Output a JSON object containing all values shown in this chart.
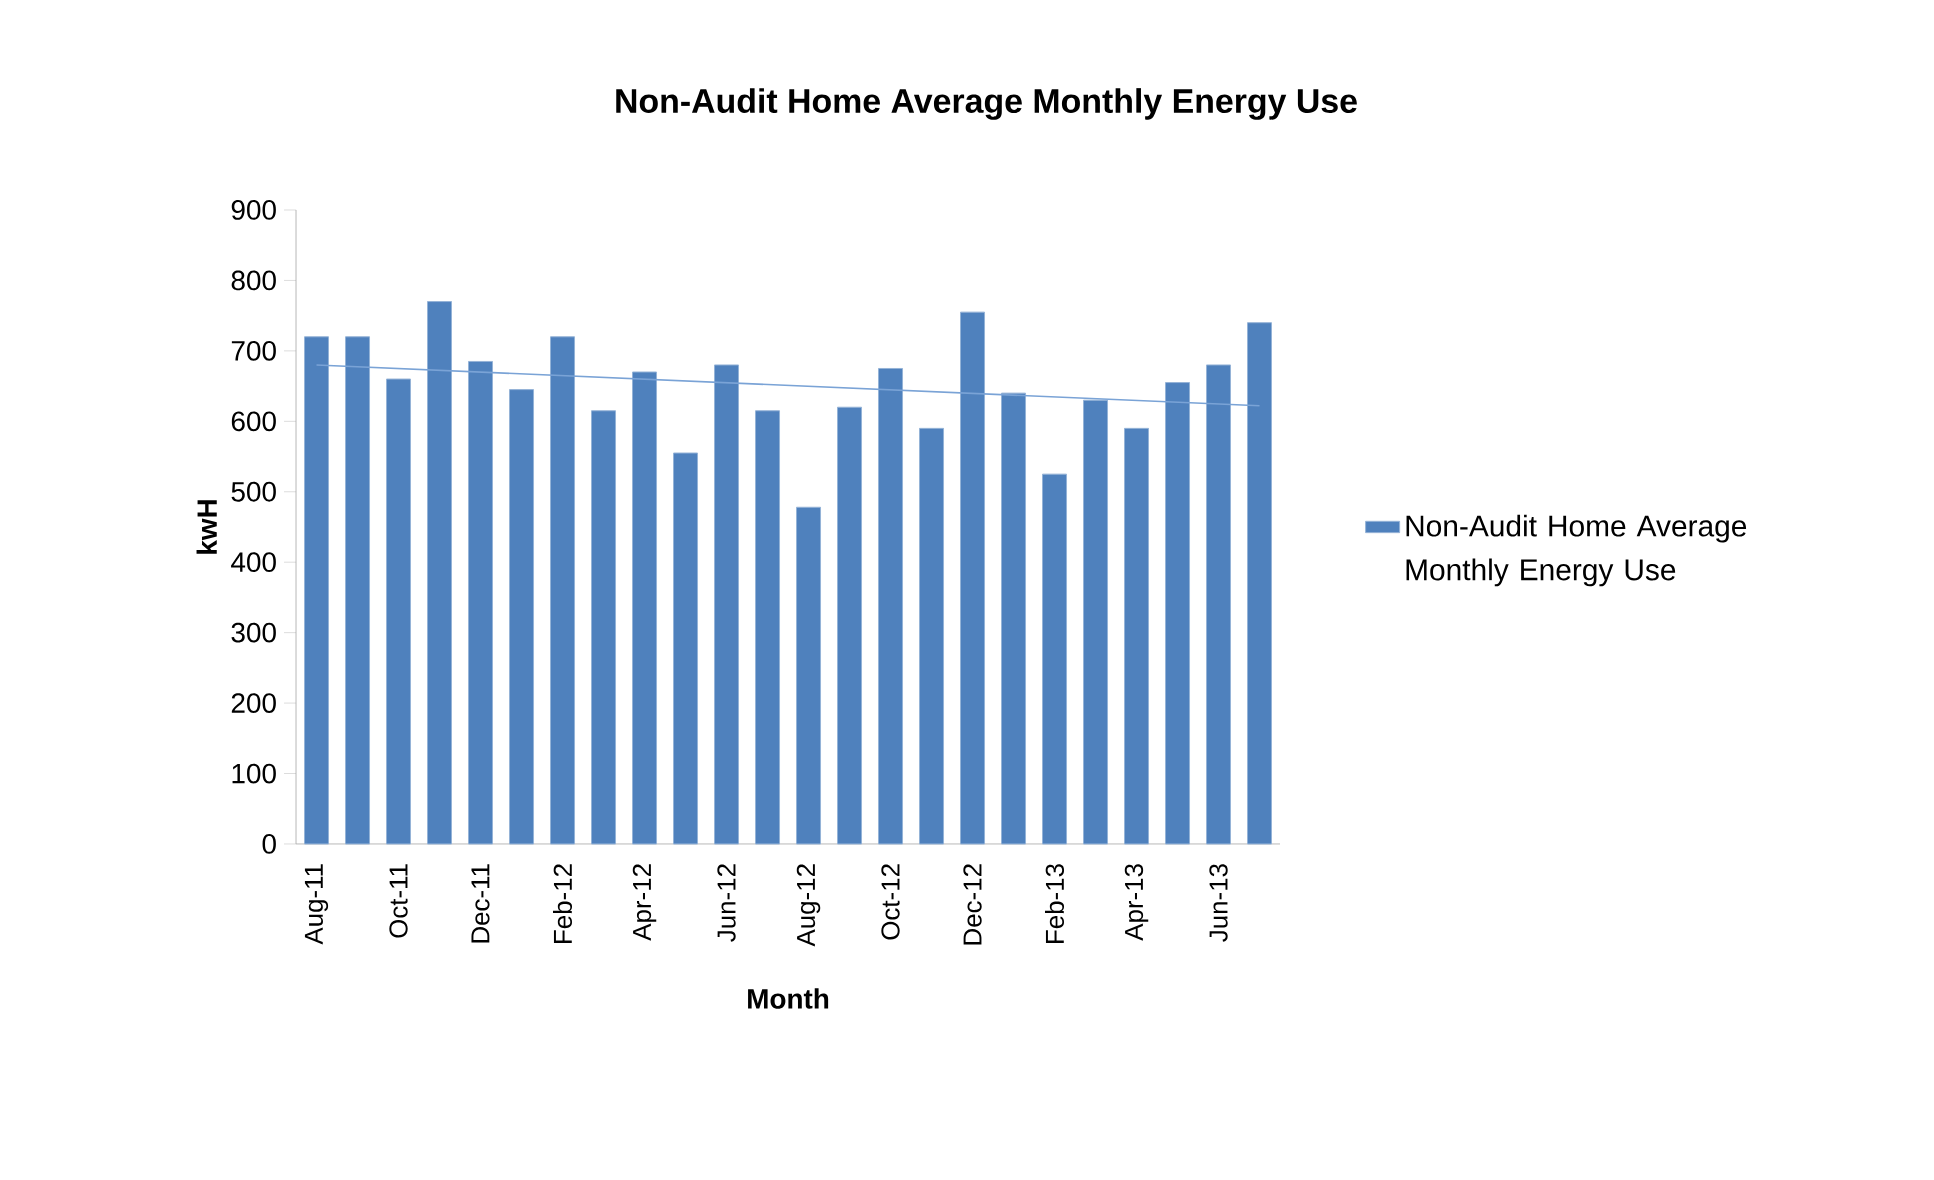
{
  "chart_data": {
    "type": "bar",
    "title": "Non-Audit Home  Average Monthly Energy Use",
    "xlabel": "Month",
    "ylabel": "kwH",
    "categories": [
      "Aug-11",
      null,
      "Oct-11",
      null,
      "Dec-11",
      null,
      "Feb-12",
      null,
      "Apr-12",
      null,
      "Jun-12",
      null,
      "Aug-12",
      null,
      "Oct-12",
      null,
      "Dec-12",
      null,
      "Feb-13",
      null,
      "Apr-13",
      null,
      "Jun-13",
      null
    ],
    "series": [
      {
        "name": "Non-Audit Home Average Monthly Energy Use",
        "color": "#4f81bd",
        "values": [
          720,
          720,
          660,
          770,
          685,
          645,
          720,
          615,
          670,
          555,
          680,
          615,
          478,
          620,
          675,
          590,
          755,
          640,
          525,
          630,
          590,
          655,
          680,
          740
        ]
      },
      {
        "type": "line",
        "color": "#7aa3d6",
        "values": [
          680,
          null,
          null,
          null,
          null,
          null,
          null,
          null,
          null,
          null,
          null,
          null,
          null,
          null,
          null,
          null,
          null,
          null,
          null,
          null,
          null,
          null,
          null,
          622
        ]
      }
    ],
    "ylim": [
      0,
      900
    ],
    "yticks": [
      0,
      100,
      200,
      300,
      400,
      500,
      600,
      700,
      800,
      900
    ],
    "legend": "right",
    "grid": false
  }
}
